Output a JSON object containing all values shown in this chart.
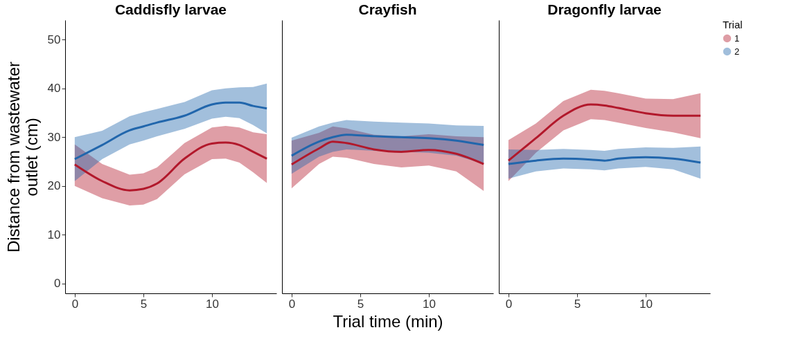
{
  "chart_data": [
    {
      "type": "line",
      "title": "Caddisfly larvae",
      "ylabel": "Distance from wastewater outlet (cm)",
      "x": [
        0,
        2,
        4,
        5,
        6,
        8,
        10,
        11,
        12,
        13,
        14
      ],
      "xlim": [
        -0.7,
        14.7
      ],
      "xticks": [
        0,
        5,
        10
      ],
      "ylim": [
        -2,
        54
      ],
      "yticks": [
        0,
        10,
        20,
        30,
        40,
        50
      ],
      "series": [
        {
          "color": "#b2182b",
          "values": [
            24.4,
            21,
            19.1,
            19.4,
            20.5,
            25.6,
            28.7,
            28.9,
            28.4,
            27,
            25.6
          ],
          "lower": [
            20,
            17.5,
            16,
            16.2,
            17.3,
            22.4,
            25.5,
            25.6,
            24.8,
            22.8,
            20.6
          ],
          "upper": [
            28.5,
            24.5,
            22.3,
            22.6,
            23.8,
            28.8,
            32,
            32.3,
            32,
            31,
            30.6
          ]
        },
        {
          "color": "#2166ac",
          "values": [
            25.5,
            28.4,
            31.4,
            32.2,
            33,
            34.4,
            36.7,
            37.1,
            37.1,
            36.4,
            35.9
          ],
          "lower": [
            21,
            25.5,
            28.5,
            29.3,
            30.2,
            31.7,
            33.8,
            34.2,
            33.9,
            32.5,
            30.8
          ],
          "upper": [
            30,
            31.3,
            34.3,
            35.1,
            35.8,
            37.2,
            39.6,
            40,
            40.2,
            40.3,
            41
          ]
        }
      ]
    },
    {
      "type": "line",
      "title": "Crayfish",
      "xlabel": "Trial time (min)",
      "x": [
        0,
        2,
        3,
        4,
        6,
        8,
        10,
        12,
        14
      ],
      "xlim": [
        -0.7,
        14.7
      ],
      "xticks": [
        0,
        5,
        10
      ],
      "ylim": [
        -2,
        54
      ],
      "yticks": [
        0,
        10,
        20,
        30,
        40,
        50
      ],
      "tick_labels": "x",
      "series": [
        {
          "color": "#b2182b",
          "values": [
            24.4,
            27.7,
            29.1,
            28.8,
            27.5,
            27,
            27.4,
            26.6,
            24.5
          ],
          "lower": [
            19.5,
            24.5,
            26,
            25.8,
            24.5,
            23.8,
            24.2,
            23,
            19
          ],
          "upper": [
            29.3,
            30.9,
            32.2,
            31.8,
            30.5,
            30.2,
            30.6,
            30.2,
            30
          ]
        },
        {
          "color": "#2166ac",
          "values": [
            26.2,
            29.1,
            30,
            30.5,
            30.2,
            30,
            29.8,
            29.3,
            28.4
          ],
          "lower": [
            22.5,
            26,
            27,
            27.5,
            27.2,
            27,
            26.8,
            26.2,
            24.5
          ],
          "upper": [
            29.9,
            32.2,
            33,
            33.5,
            33.2,
            33,
            32.8,
            32.4,
            32.3
          ]
        }
      ]
    },
    {
      "type": "line",
      "title": "Dragonfly larvae",
      "x": [
        0,
        2,
        4,
        6,
        7,
        8,
        10,
        12,
        14
      ],
      "xlim": [
        -0.7,
        14.7
      ],
      "xticks": [
        0,
        5,
        10
      ],
      "ylim": [
        -2,
        54
      ],
      "yticks": [
        0,
        10,
        20,
        30,
        40,
        50
      ],
      "tick_labels": "x",
      "legend": "right",
      "legend_title": "Trial",
      "series": [
        {
          "name": "1",
          "color": "#b2182b",
          "values": [
            25.2,
            29.8,
            34.4,
            36.7,
            36.5,
            36,
            34.9,
            34.4,
            34.4
          ],
          "lower": [
            21,
            26.8,
            31.4,
            33.7,
            33.5,
            33,
            31.9,
            31,
            29.8
          ],
          "upper": [
            29.4,
            32.8,
            37.4,
            39.7,
            39.5,
            39,
            37.9,
            37.8,
            39
          ]
        },
        {
          "name": "2",
          "color": "#2166ac",
          "values": [
            24.5,
            25.2,
            25.6,
            25.4,
            25.2,
            25.6,
            25.9,
            25.6,
            24.8
          ],
          "lower": [
            21.5,
            23,
            23.6,
            23.4,
            23.2,
            23.6,
            23.9,
            23.4,
            21.5
          ],
          "upper": [
            27.5,
            27.4,
            27.6,
            27.4,
            27.2,
            27.6,
            27.9,
            27.8,
            28.1
          ]
        }
      ]
    }
  ]
}
